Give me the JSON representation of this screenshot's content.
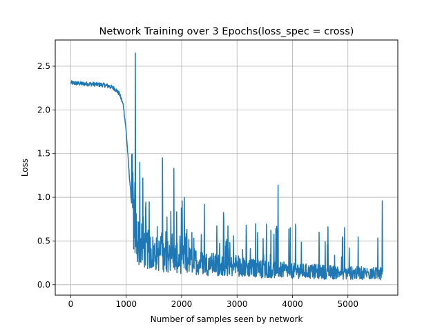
{
  "chart_data": {
    "type": "line",
    "title": "Network Training over 3 Epochs(loss_spec = cross)",
    "xlabel": "Number of samples seen by network",
    "ylabel": "Loss",
    "xlim": [
      -280,
      5900
    ],
    "ylim": [
      -0.12,
      2.8
    ],
    "xticks": [
      0,
      1000,
      2000,
      3000,
      4000,
      5000
    ],
    "xtick_labels": [
      "0",
      "1000",
      "2000",
      "3000",
      "4000",
      "5000"
    ],
    "yticks": [
      0.0,
      0.5,
      1.0,
      1.5,
      2.0,
      2.5
    ],
    "ytick_labels": [
      "0.0",
      "0.5",
      "1.0",
      "1.5",
      "2.0",
      "2.5"
    ],
    "grid": true,
    "series": [
      {
        "color": "#1f77b4",
        "x_range": [
          0,
          5625
        ],
        "anchors": [
          [
            0,
            2.31
          ],
          [
            200,
            2.3
          ],
          [
            400,
            2.295
          ],
          [
            600,
            2.285
          ],
          [
            700,
            2.27
          ],
          [
            800,
            2.24
          ],
          [
            880,
            2.18
          ],
          [
            950,
            2.05
          ],
          [
            1000,
            1.75
          ],
          [
            1050,
            1.3
          ],
          [
            1100,
            0.9
          ],
          [
            1150,
            0.6
          ],
          [
            1200,
            0.45
          ],
          [
            1300,
            0.38
          ],
          [
            1500,
            0.32
          ],
          [
            2000,
            0.26
          ],
          [
            2500,
            0.21
          ],
          [
            3000,
            0.18
          ],
          [
            3500,
            0.16
          ],
          [
            4000,
            0.14
          ],
          [
            4500,
            0.13
          ],
          [
            5000,
            0.12
          ],
          [
            5625,
            0.11
          ]
        ],
        "spikes": [
          [
            1165,
            2.65
          ],
          [
            1245,
            1.4
          ],
          [
            1300,
            1.22
          ],
          [
            1655,
            1.45
          ],
          [
            1860,
            1.33
          ],
          [
            2050,
            1.0
          ],
          [
            2410,
            0.92
          ],
          [
            3740,
            1.14
          ],
          [
            4480,
            0.6
          ],
          [
            5620,
            0.96
          ]
        ]
      }
    ]
  }
}
